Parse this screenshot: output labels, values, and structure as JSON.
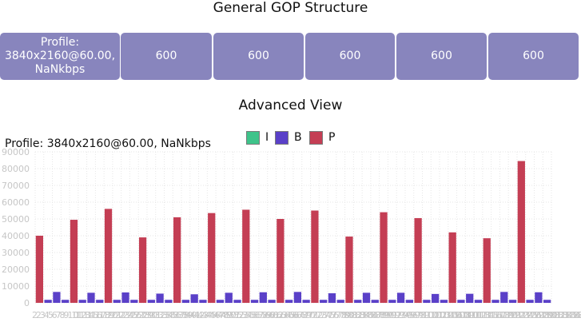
{
  "header": {
    "title": "General GOP Structure"
  },
  "gop": {
    "cells": [
      {
        "label": "Profile: 3840x2160@60.00, NaNkbps"
      },
      {
        "label": "600"
      },
      {
        "label": "600"
      },
      {
        "label": "600"
      },
      {
        "label": "600"
      },
      {
        "label": "600"
      }
    ]
  },
  "advanced": {
    "title": "Advanced View"
  },
  "chart_data": {
    "type": "bar",
    "title": "Profile: 3840x2160@60.00, NaNkbps",
    "xlabel": "",
    "ylabel": "",
    "ylim": [
      0,
      90000
    ],
    "grid": true,
    "legend_position": "top-center",
    "series": [
      {
        "name": "I",
        "color": "#3ec38a"
      },
      {
        "name": "B",
        "color": "#5a40c8"
      },
      {
        "name": "P",
        "color": "#c43e54"
      }
    ],
    "y_ticks": [
      0,
      10000,
      20000,
      30000,
      40000,
      50000,
      60000,
      70000,
      80000,
      90000
    ],
    "y_tick_labels": [
      "0",
      "10000",
      "20000",
      "30000",
      "40000",
      "50000",
      "60000",
      "70000",
      "80000",
      "90000"
    ],
    "x_tick_labels": [
      "2",
      "2",
      "3",
      "4",
      "5",
      "6",
      "7",
      "8",
      "9",
      "10",
      "11",
      "12",
      "13",
      "14",
      "15",
      "16",
      "17",
      "18",
      "19",
      "20",
      "21",
      "22",
      "23",
      "24",
      "25",
      "26",
      "27",
      "28",
      "29",
      "30",
      "31",
      "32",
      "33",
      "34",
      "35",
      "36",
      "37",
      "38",
      "39",
      "40",
      "41",
      "42",
      "43",
      "44",
      "45",
      "46",
      "47",
      "48",
      "49",
      "50",
      "51",
      "52",
      "53",
      "54",
      "55",
      "56",
      "57",
      "58",
      "59",
      "60",
      "61",
      "62",
      "63",
      "64",
      "65",
      "66",
      "67",
      "68",
      "69",
      "70",
      "71",
      "72",
      "73",
      "74",
      "75",
      "76",
      "77",
      "78",
      "79",
      "80",
      "81",
      "82",
      "83",
      "84",
      "85",
      "86",
      "87",
      "88",
      "89",
      "90",
      "91",
      "92",
      "93",
      "94",
      "95",
      "96",
      "97",
      "98",
      "99",
      "100",
      "101",
      "102",
      "103",
      "104",
      "105",
      "106",
      "107",
      "108",
      "109",
      "110",
      "111",
      "112",
      "113",
      "114",
      "115",
      "116",
      "117",
      "118",
      "119",
      "120",
      "121",
      "122",
      "123",
      "124",
      "125",
      "126",
      "127",
      "128",
      "129",
      "130",
      "131",
      "132",
      "133",
      "134",
      "135",
      "136",
      "137",
      "138",
      "139"
    ],
    "frames": [
      {
        "type": "P",
        "value": 40000
      },
      {
        "type": "B",
        "value": 1800
      },
      {
        "type": "B",
        "value": 6500
      },
      {
        "type": "B",
        "value": 1800
      },
      {
        "type": "P",
        "value": 49500
      },
      {
        "type": "B",
        "value": 1800
      },
      {
        "type": "B",
        "value": 6000
      },
      {
        "type": "B",
        "value": 1800
      },
      {
        "type": "P",
        "value": 56000
      },
      {
        "type": "B",
        "value": 1800
      },
      {
        "type": "B",
        "value": 6200
      },
      {
        "type": "B",
        "value": 1800
      },
      {
        "type": "P",
        "value": 39000
      },
      {
        "type": "B",
        "value": 1800
      },
      {
        "type": "B",
        "value": 5500
      },
      {
        "type": "B",
        "value": 1800
      },
      {
        "type": "P",
        "value": 51000
      },
      {
        "type": "B",
        "value": 1800
      },
      {
        "type": "B",
        "value": 5100
      },
      {
        "type": "B",
        "value": 1800
      },
      {
        "type": "P",
        "value": 53500
      },
      {
        "type": "B",
        "value": 1800
      },
      {
        "type": "B",
        "value": 6000
      },
      {
        "type": "B",
        "value": 1800
      },
      {
        "type": "P",
        "value": 55500
      },
      {
        "type": "B",
        "value": 1800
      },
      {
        "type": "B",
        "value": 6300
      },
      {
        "type": "B",
        "value": 1800
      },
      {
        "type": "P",
        "value": 50000
      },
      {
        "type": "B",
        "value": 1800
      },
      {
        "type": "B",
        "value": 6500
      },
      {
        "type": "B",
        "value": 1800
      },
      {
        "type": "P",
        "value": 55000
      },
      {
        "type": "B",
        "value": 1800
      },
      {
        "type": "B",
        "value": 5700
      },
      {
        "type": "B",
        "value": 1800
      },
      {
        "type": "P",
        "value": 39500
      },
      {
        "type": "B",
        "value": 1800
      },
      {
        "type": "B",
        "value": 6000
      },
      {
        "type": "B",
        "value": 1800
      },
      {
        "type": "P",
        "value": 54000
      },
      {
        "type": "B",
        "value": 1800
      },
      {
        "type": "B",
        "value": 6000
      },
      {
        "type": "B",
        "value": 1800
      },
      {
        "type": "P",
        "value": 50500
      },
      {
        "type": "B",
        "value": 1800
      },
      {
        "type": "B",
        "value": 5300
      },
      {
        "type": "B",
        "value": 1800
      },
      {
        "type": "P",
        "value": 42000
      },
      {
        "type": "B",
        "value": 1800
      },
      {
        "type": "B",
        "value": 5400
      },
      {
        "type": "B",
        "value": 1800
      },
      {
        "type": "P",
        "value": 38500
      },
      {
        "type": "B",
        "value": 1800
      },
      {
        "type": "B",
        "value": 6500
      },
      {
        "type": "B",
        "value": 1800
      },
      {
        "type": "P",
        "value": 84500
      },
      {
        "type": "B",
        "value": 1800
      },
      {
        "type": "B",
        "value": 6300
      },
      {
        "type": "B",
        "value": 1800
      }
    ]
  }
}
